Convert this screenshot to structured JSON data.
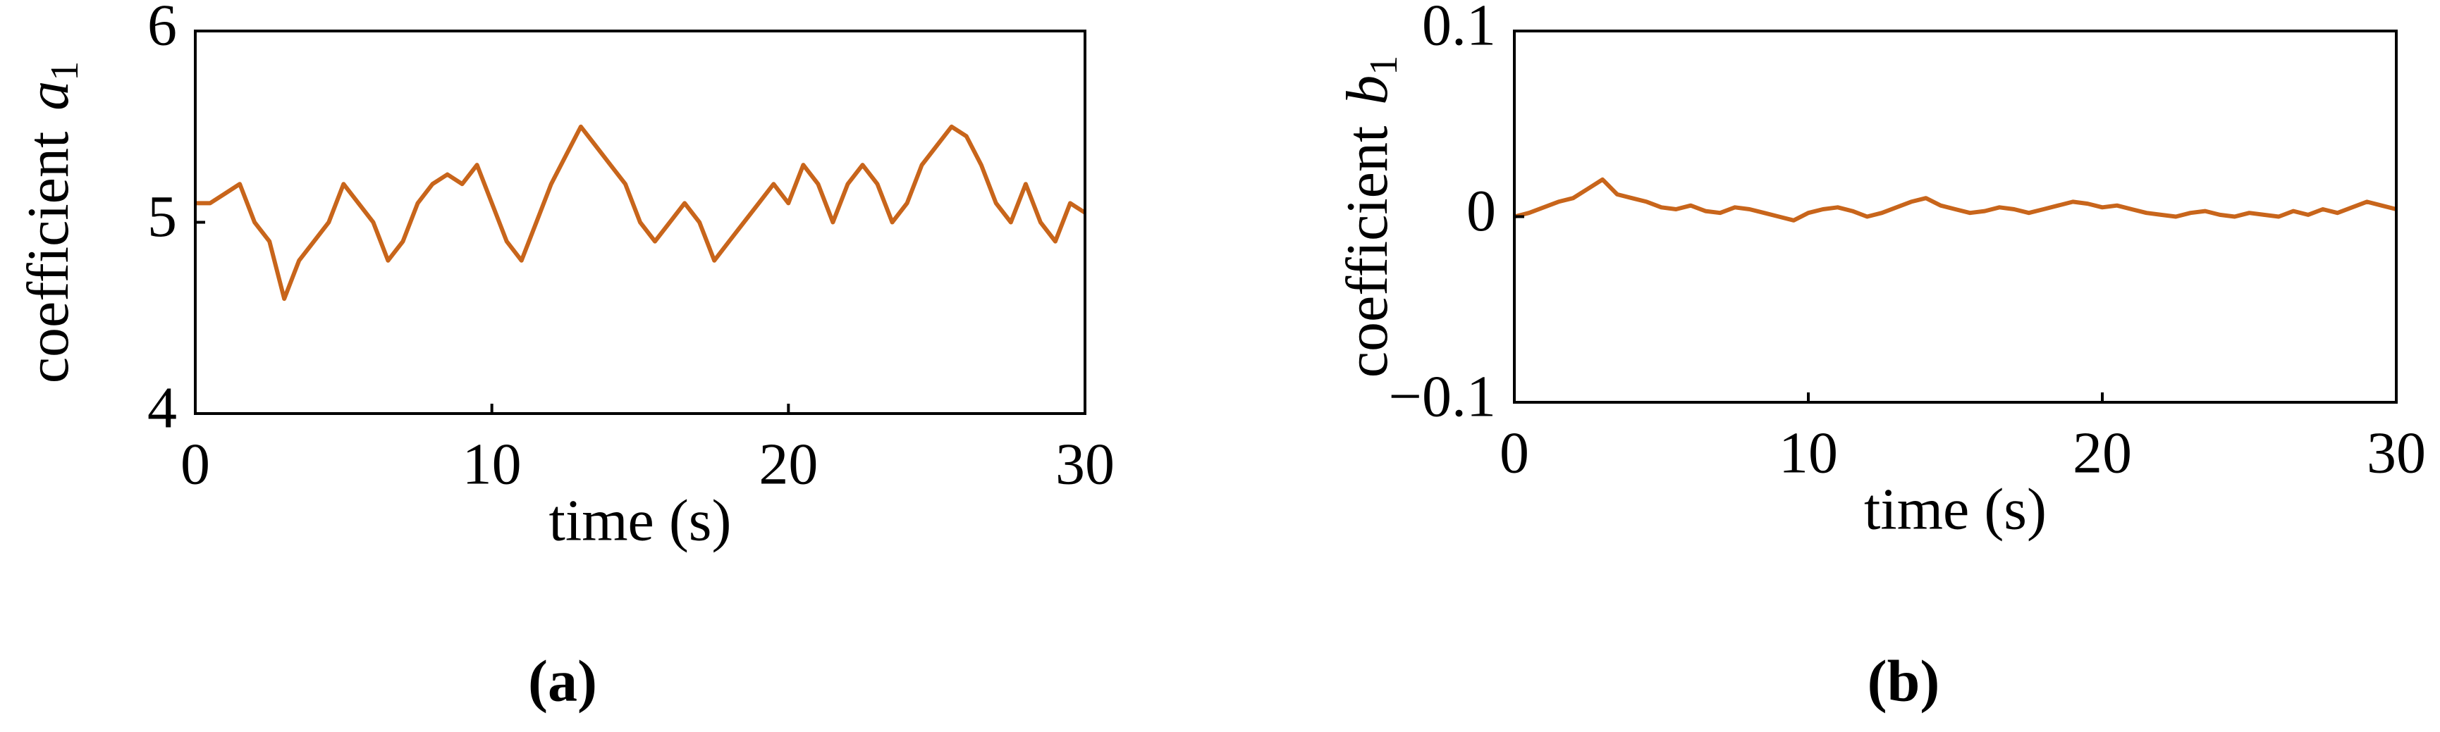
{
  "chart_data": [
    {
      "type": "line",
      "caption": "(a)",
      "ylabel": {
        "text": "coefficient",
        "symbol": "a",
        "subscript": "1"
      },
      "xlabel": "time (s)",
      "x": [
        0,
        0.5,
        1,
        1.5,
        2,
        2.5,
        3,
        3.5,
        4,
        4.5,
        5,
        5.5,
        6,
        6.5,
        7,
        7.5,
        8,
        8.5,
        9,
        9.5,
        10,
        10.5,
        11,
        11.5,
        12,
        12.5,
        13,
        13.5,
        14,
        14.5,
        15,
        15.5,
        16,
        16.5,
        17,
        17.5,
        18,
        18.5,
        19,
        19.5,
        20,
        20.5,
        21,
        21.5,
        22,
        22.5,
        23,
        23.5,
        24,
        24.5,
        25,
        25.5,
        26,
        26.5,
        27,
        27.5,
        28,
        28.5,
        29,
        29.5,
        30
      ],
      "series": [
        {
          "color": "#c8651b",
          "values": [
            5.1,
            5.1,
            5.15,
            5.2,
            5.0,
            4.9,
            4.6,
            4.8,
            4.9,
            5.0,
            5.2,
            5.1,
            5.0,
            4.8,
            4.9,
            5.1,
            5.2,
            5.25,
            5.2,
            5.3,
            5.1,
            4.9,
            4.8,
            5.0,
            5.2,
            5.35,
            5.5,
            5.4,
            5.3,
            5.2,
            5.0,
            4.9,
            5.0,
            5.1,
            5.0,
            4.8,
            4.9,
            5.0,
            5.1,
            5.2,
            5.1,
            5.3,
            5.2,
            5.0,
            5.2,
            5.3,
            5.2,
            5.0,
            5.1,
            5.3,
            5.4,
            5.5,
            5.45,
            5.3,
            5.1,
            5.0,
            5.2,
            5.0,
            4.9,
            5.1,
            5.05
          ]
        }
      ],
      "xlim": [
        0,
        30
      ],
      "xticks": [
        0,
        10,
        20,
        30
      ],
      "ylim": [
        4,
        6
      ],
      "yticks": [
        4,
        5,
        6
      ]
    },
    {
      "type": "line",
      "caption": "(b)",
      "ylabel": {
        "text": "coefficient",
        "symbol": "b",
        "subscript": "1"
      },
      "xlabel": "time (s)",
      "x": [
        0,
        0.5,
        1,
        1.5,
        2,
        2.5,
        3,
        3.5,
        4,
        4.5,
        5,
        5.5,
        6,
        6.5,
        7,
        7.5,
        8,
        8.5,
        9,
        9.5,
        10,
        10.5,
        11,
        11.5,
        12,
        12.5,
        13,
        13.5,
        14,
        14.5,
        15,
        15.5,
        16,
        16.5,
        17,
        17.5,
        18,
        18.5,
        19,
        19.5,
        20,
        20.5,
        21,
        21.5,
        22,
        22.5,
        23,
        23.5,
        24,
        24.5,
        25,
        25.5,
        26,
        26.5,
        27,
        27.5,
        28,
        28.5,
        29,
        29.5,
        30
      ],
      "series": [
        {
          "color": "#c8651b",
          "values": [
            0.0,
            0.002,
            0.005,
            0.008,
            0.01,
            0.015,
            0.02,
            0.012,
            0.01,
            0.008,
            0.005,
            0.004,
            0.006,
            0.003,
            0.002,
            0.005,
            0.004,
            0.002,
            0.0,
            -0.002,
            0.002,
            0.004,
            0.005,
            0.003,
            0.0,
            0.002,
            0.005,
            0.008,
            0.01,
            0.006,
            0.004,
            0.002,
            0.003,
            0.005,
            0.004,
            0.002,
            0.004,
            0.006,
            0.008,
            0.007,
            0.005,
            0.006,
            0.004,
            0.002,
            0.001,
            0.0,
            0.002,
            0.003,
            0.001,
            0.0,
            0.002,
            0.001,
            0.0,
            0.003,
            0.001,
            0.004,
            0.002,
            0.005,
            0.008,
            0.006,
            0.004
          ]
        }
      ],
      "xlim": [
        0,
        30
      ],
      "xticks": [
        0,
        10,
        20,
        30
      ],
      "ylim": [
        -0.1,
        0.1
      ],
      "yticks": [
        {
          "value": -0.1,
          "label": "−0.1"
        },
        0,
        0.1
      ]
    }
  ]
}
